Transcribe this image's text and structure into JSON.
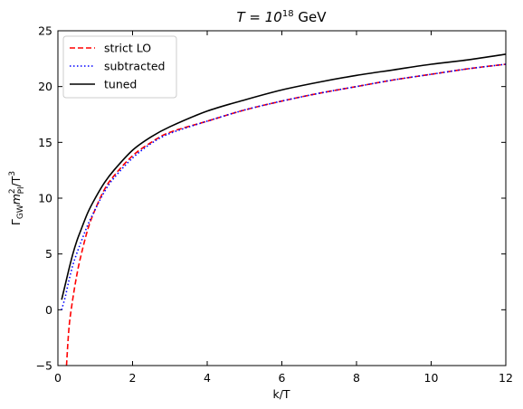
{
  "chart_data": {
    "type": "line",
    "title": "T = 10^18 GeV",
    "title_parts": {
      "base": "T = 10",
      "exp": "18",
      "unit": " GeV"
    },
    "xlabel": "k/T",
    "ylabel": "Γ_GW m_Pl^2 / T^3",
    "ylabel_parts": {
      "g": "Γ",
      "gsub": "GW",
      "m": "m",
      "msup": "2",
      "msub": "Pl",
      "rest": "/T",
      "rsup": "3"
    },
    "xlim": [
      0,
      12
    ],
    "ylim": [
      -5,
      25
    ],
    "xticks": [
      0,
      2,
      4,
      6,
      8,
      10,
      12
    ],
    "yticks": [
      -5,
      0,
      5,
      10,
      15,
      20,
      25
    ],
    "grid": false,
    "legend_position": "top-left",
    "series": [
      {
        "name": "strict LO",
        "color": "#ff0000",
        "dash": "dashed",
        "x": [
          0.23,
          0.3,
          0.4,
          0.5,
          0.6,
          0.8,
          1.0,
          1.25,
          1.5,
          2.0,
          2.5,
          3.0,
          4.0,
          5.0,
          6.0,
          7.0,
          8.0,
          9.0,
          10.0,
          11.0,
          12.0
        ],
        "y": [
          -5.0,
          -1.5,
          1.0,
          3.0,
          4.6,
          7.2,
          9.0,
          10.8,
          12.0,
          13.8,
          15.0,
          15.9,
          16.9,
          17.9,
          18.7,
          19.4,
          20.0,
          20.6,
          21.1,
          21.6,
          22.0
        ]
      },
      {
        "name": "subtracted",
        "color": "#0000ff",
        "dash": "dotted",
        "x": [
          0.1,
          0.2,
          0.3,
          0.4,
          0.5,
          0.6,
          0.8,
          1.0,
          1.25,
          1.5,
          2.0,
          2.5,
          3.0,
          4.0,
          5.0,
          6.0,
          7.0,
          8.0,
          9.0,
          10.0,
          11.0,
          12.0
        ],
        "y": [
          0.0,
          1.2,
          2.7,
          4.0,
          5.0,
          5.9,
          7.6,
          9.0,
          10.6,
          11.8,
          13.6,
          14.9,
          15.8,
          16.9,
          17.9,
          18.7,
          19.4,
          20.0,
          20.6,
          21.1,
          21.6,
          22.0
        ]
      },
      {
        "name": "tuned",
        "color": "#000000",
        "dash": "solid",
        "x": [
          0.1,
          0.2,
          0.3,
          0.4,
          0.5,
          0.6,
          0.8,
          1.0,
          1.25,
          1.5,
          2.0,
          2.5,
          3.0,
          4.0,
          5.0,
          6.0,
          7.0,
          8.0,
          9.0,
          10.0,
          11.0,
          12.0
        ],
        "y": [
          0.9,
          2.3,
          3.7,
          5.0,
          6.1,
          7.0,
          8.7,
          10.0,
          11.4,
          12.5,
          14.3,
          15.5,
          16.4,
          17.8,
          18.8,
          19.7,
          20.4,
          21.0,
          21.5,
          22.0,
          22.4,
          22.9
        ]
      }
    ]
  }
}
